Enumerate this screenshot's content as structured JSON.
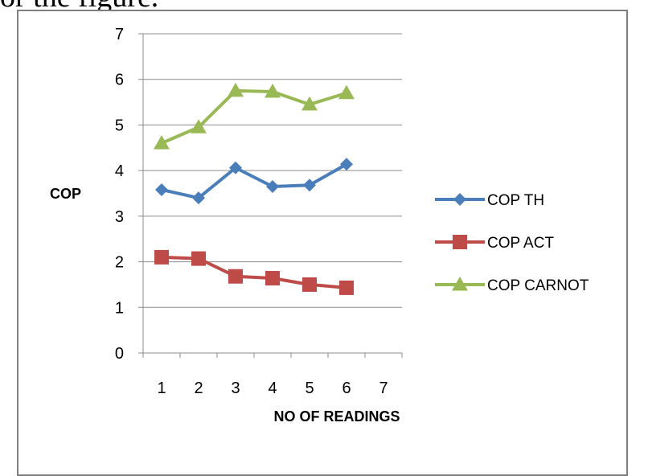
{
  "page": {
    "top_text": "or the figure."
  },
  "chart_data": {
    "type": "line",
    "xlabel": "NO OF READINGS",
    "ylabel": "COP",
    "ylim": [
      0,
      7
    ],
    "xlim": [
      0.5,
      7.5
    ],
    "yticks": [
      "0",
      "1",
      "2",
      "3",
      "4",
      "5",
      "6",
      "7"
    ],
    "xticks": [
      "1",
      "2",
      "3",
      "4",
      "5",
      "6",
      "7"
    ],
    "grid": "horizontal",
    "legend_placement": "right",
    "series": [
      {
        "name": "COP TH",
        "color": "#4a7ebb",
        "marker": "diamond",
        "x": [
          1,
          2,
          3,
          4,
          5,
          6
        ],
        "values": [
          3.58,
          3.4,
          4.06,
          3.65,
          3.68,
          4.14
        ]
      },
      {
        "name": "COP ACT",
        "color": "#be4b48",
        "marker": "square",
        "x": [
          1,
          2,
          3,
          4,
          5,
          6
        ],
        "values": [
          2.1,
          2.07,
          1.68,
          1.64,
          1.5,
          1.43
        ]
      },
      {
        "name": "COP CARNOT",
        "color": "#98b954",
        "marker": "triangle",
        "x": [
          1,
          2,
          3,
          4,
          5,
          6
        ],
        "values": [
          4.6,
          4.95,
          5.75,
          5.73,
          5.45,
          5.7
        ]
      }
    ]
  }
}
